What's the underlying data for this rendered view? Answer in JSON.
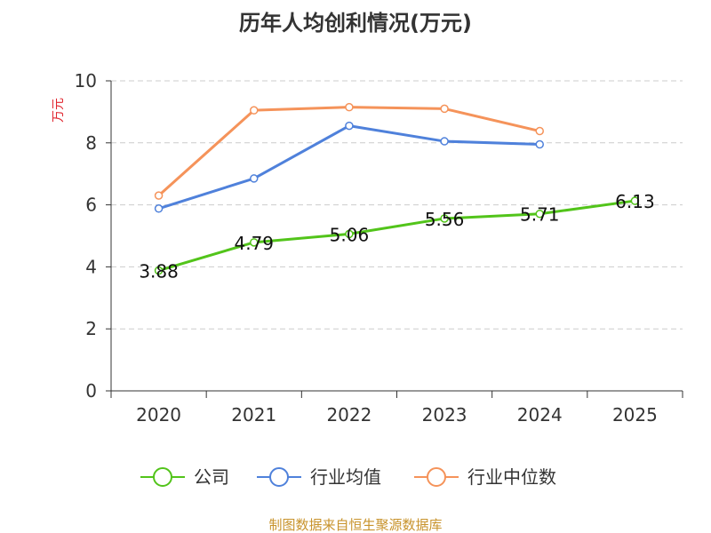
{
  "chart_data": {
    "type": "line",
    "title": "历年人均创利情况(万元)",
    "xlabel": "",
    "ylabel": "万元",
    "categories": [
      "2020",
      "2021",
      "2022",
      "2023",
      "2024",
      "2025"
    ],
    "ylim": [
      0,
      10
    ],
    "yticks": [
      0,
      2,
      4,
      6,
      8,
      10
    ],
    "grid": true,
    "legend_position": "bottom",
    "series": [
      {
        "name": "公司",
        "color": "#52c41a",
        "values": [
          3.88,
          4.79,
          5.06,
          5.56,
          5.71,
          6.13
        ],
        "labels": [
          "3.88",
          "4.79",
          "5.06",
          "5.56",
          "5.71",
          "6.13"
        ]
      },
      {
        "name": "行业均值",
        "color": "#4f81db",
        "values": [
          5.88,
          6.85,
          8.55,
          8.05,
          7.95,
          null
        ]
      },
      {
        "name": "行业中位数",
        "color": "#f5935a",
        "values": [
          6.3,
          9.05,
          9.15,
          9.1,
          8.38,
          null
        ]
      }
    ],
    "source": "制图数据来自恒生聚源数据库"
  }
}
